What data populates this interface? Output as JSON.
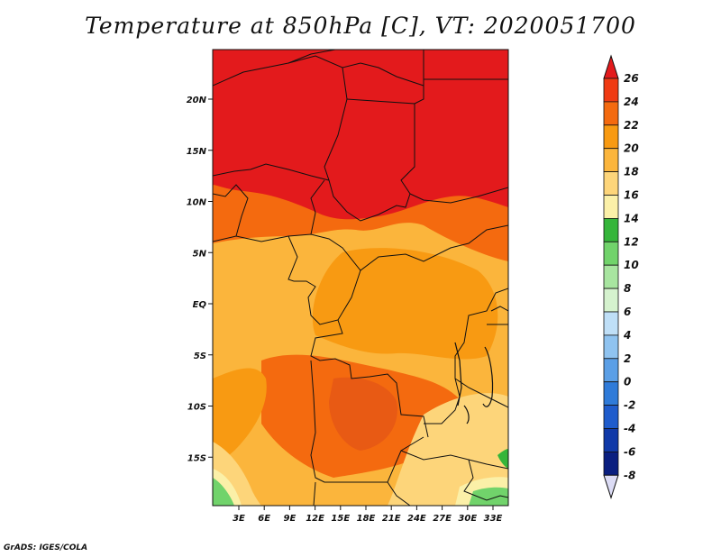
{
  "title": "Temperature at 850hPa [C], VT: 2020051700",
  "footer": "GrADS: IGES/COLA",
  "map": {
    "lat_ticks": [
      "20N",
      "15N",
      "10N",
      "5N",
      "EQ",
      "5S",
      "10S",
      "15S"
    ],
    "lon_ticks": [
      "3E",
      "6E",
      "9E",
      "12E",
      "15E",
      "18E",
      "21E",
      "24E",
      "27E",
      "30E",
      "33E"
    ]
  },
  "colorbar": {
    "labels": [
      "26",
      "24",
      "22",
      "20",
      "18",
      "16",
      "14",
      "12",
      "10",
      "8",
      "6",
      "4",
      "2",
      "0",
      "-2",
      "-4",
      "-6",
      "-8"
    ],
    "colors": [
      "#e31a1c",
      "#f03b13",
      "#f46a0f",
      "#f89a12",
      "#fbb53c",
      "#fdd57a",
      "#fbf0a8",
      "#35b53a",
      "#71d36b",
      "#a8e5a0",
      "#d5f2ce",
      "#bfdff7",
      "#8fc3f0",
      "#5b9fe6",
      "#2f7bd9",
      "#1f5ccc",
      "#1039a8",
      "#0a1f80",
      "#dcdcf5"
    ]
  }
}
